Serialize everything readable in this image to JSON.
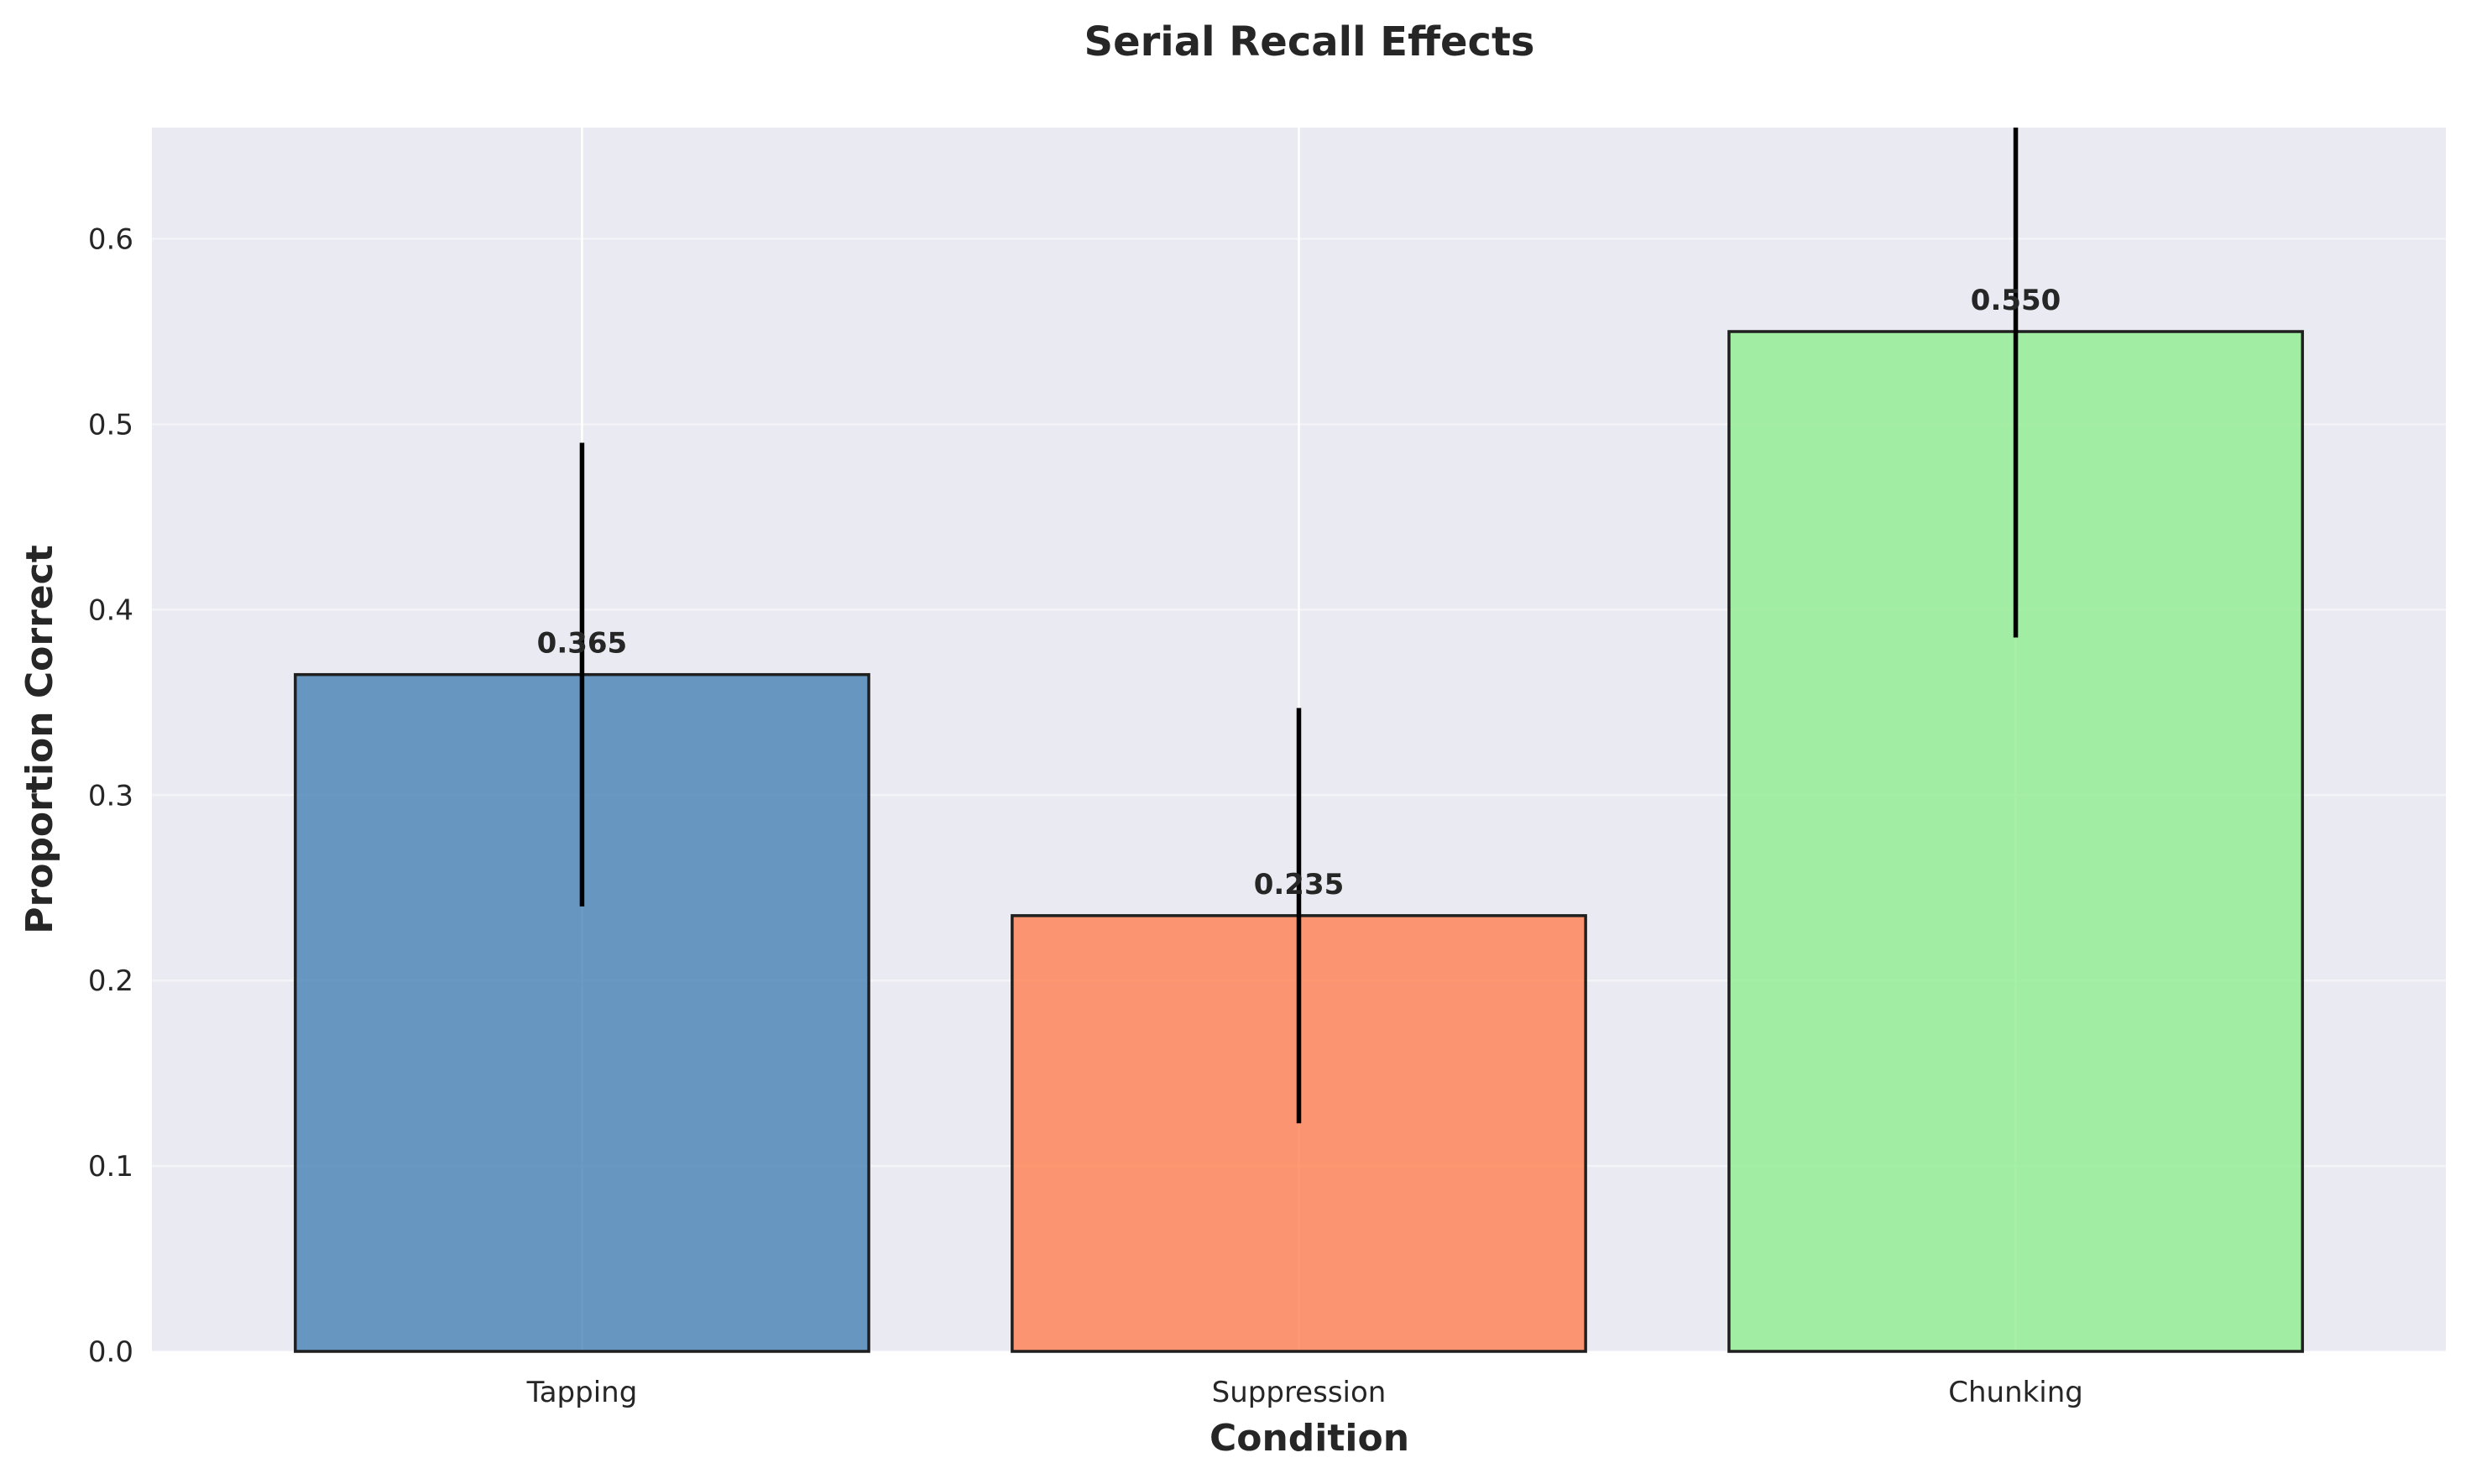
{
  "chart_data": {
    "type": "bar",
    "title": "Serial Recall Effects",
    "xlabel": "Condition",
    "ylabel": "Proportion Correct",
    "categories": [
      "Tapping",
      "Suppression",
      "Chunking"
    ],
    "values": [
      0.365,
      0.235,
      0.55
    ],
    "value_labels": [
      "0.365",
      "0.235",
      "0.550"
    ],
    "errors": [
      0.125,
      0.112,
      0.165
    ],
    "colors": [
      "#4682b4",
      "#ff7f50",
      "#90ee90"
    ],
    "ylim": [
      0,
      0.66
    ],
    "yticks": [
      0.0,
      0.1,
      0.2,
      0.3,
      0.4,
      0.5,
      0.6
    ],
    "ytick_labels": [
      "0.0",
      "0.1",
      "0.2",
      "0.3",
      "0.4",
      "0.5",
      "0.6"
    ],
    "grid": true,
    "background": "#eaeaf2",
    "legend": "none"
  }
}
